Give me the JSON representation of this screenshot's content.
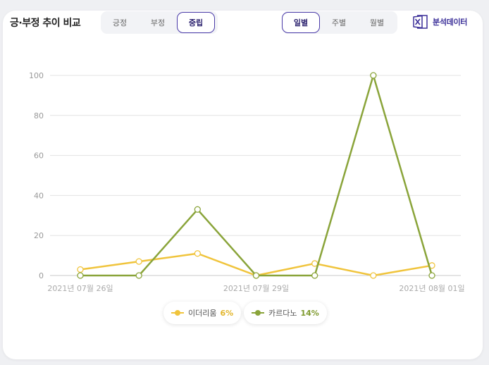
{
  "header": {
    "title": "긍·부정 추이 비교"
  },
  "sentiment_tabs": [
    {
      "label": "긍정",
      "active": false
    },
    {
      "label": "부정",
      "active": false
    },
    {
      "label": "중립",
      "active": true
    }
  ],
  "period_tabs": [
    {
      "label": "일별",
      "active": true
    },
    {
      "label": "주별",
      "active": false
    },
    {
      "label": "월별",
      "active": false
    }
  ],
  "export": {
    "label": "분석데이터",
    "icon": "excel-icon"
  },
  "chart_data": {
    "type": "line",
    "x": [
      "2021년 07월 26일",
      "2021년 07월 27일",
      "2021년 07월 28일",
      "2021년 07월 29일",
      "2021년 07월 30일",
      "2021년 07월 31일",
      "2021년 08월 01일"
    ],
    "x_tick_labels": [
      "2021년 07월 26일",
      "",
      "",
      "2021년 07월 29일",
      "",
      "",
      "2021년 08월 01일"
    ],
    "ylim": [
      0,
      100
    ],
    "yticks": [
      "0",
      "20",
      "40",
      "60",
      "80",
      "100"
    ],
    "grid": true,
    "series": [
      {
        "name": "이더리움",
        "percent": "6%",
        "color": "#f0c43c",
        "values": [
          3,
          7,
          11,
          0,
          6,
          0,
          5
        ]
      },
      {
        "name": "카르다노",
        "percent": "14%",
        "color": "#8aa43a",
        "values": [
          0,
          0,
          33,
          0,
          0,
          100,
          0
        ]
      }
    ]
  }
}
